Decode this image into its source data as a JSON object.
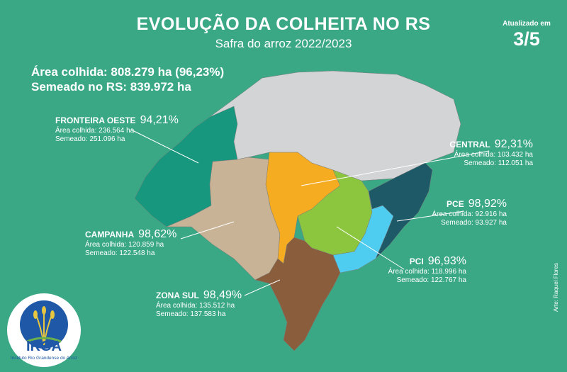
{
  "header": {
    "title": "EVOLUÇÃO DA COLHEITA NO RS",
    "subtitle": "Safra do arroz 2022/2023",
    "updated_label": "Atualizado em",
    "updated_value": "3/5"
  },
  "summary": {
    "harvested": "Área colhida: 808.279 ha (96,23%)",
    "sown": "Semeado no RS: 839.972 ha"
  },
  "regions": [
    {
      "name": "FRONTEIRA OESTE",
      "pct": "94,21%",
      "harvested": "Área colhida: 236.564 ha",
      "sown": "Semeado: 251.096 ha",
      "color": "#17987e"
    },
    {
      "name": "CENTRAL",
      "pct": "92,31%",
      "harvested": "Área colhida: 103.432 ha",
      "sown": "Semeado: 112.051 ha",
      "color": "#f5ac20"
    },
    {
      "name": "PCE",
      "pct": "98,92%",
      "harvested": "Área colhida: 92.916 ha",
      "sown": "Semeado: 93.927 ha",
      "color": "#1d5966"
    },
    {
      "name": "CAMPANHA",
      "pct": "98,62%",
      "harvested": "Área colhida: 120.859 ha",
      "sown": "Semeado: 122.548 ha",
      "color": "#c9b396"
    },
    {
      "name": "PCI",
      "pct": "96,93%",
      "harvested": "Área colhida: 118.996 ha",
      "sown": "Semeado: 122.767 ha",
      "color": "#4fcdf0"
    },
    {
      "name": "ZONA SUL",
      "pct": "98,49%",
      "harvested": "Área colhida: 135.512 ha",
      "sown": "Semeado: 137.583 ha",
      "color": "#8a5e3c"
    }
  ],
  "green_region_color": "#8cc63f",
  "other_region_color": "#d3d4d5",
  "logo": {
    "text": "IRGA",
    "caption": "Instituto Rio Grandense do Arroz"
  },
  "credit": "Arte: Raquel Flores"
}
